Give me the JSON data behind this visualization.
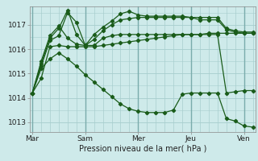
{
  "background_color": "#ceeaea",
  "grid_color": "#a8cece",
  "line_color": "#1a5c1a",
  "title": "Pression niveau de la mer( hPa )",
  "ylim": [
    1012.6,
    1017.75
  ],
  "yticks": [
    1013,
    1014,
    1015,
    1016,
    1017
  ],
  "xtick_labels": [
    "Mar",
    "Sam",
    "Mer",
    "Jeu",
    "Ven"
  ],
  "xtick_positions": [
    0,
    6,
    12,
    18,
    24
  ],
  "num_points": 26,
  "series": [
    [
      1014.2,
      1014.8,
      1016.1,
      1016.15,
      1016.1,
      1016.1,
      1016.1,
      1016.1,
      1016.15,
      1016.2,
      1016.25,
      1016.3,
      1016.35,
      1016.4,
      1016.45,
      1016.5,
      1016.55,
      1016.6,
      1016.6,
      1016.6,
      1016.65,
      1016.65,
      1016.65,
      1016.65,
      1016.65,
      1016.65
    ],
    [
      1014.2,
      1015.3,
      1016.35,
      1016.55,
      1017.5,
      1017.1,
      1016.15,
      1016.15,
      1016.45,
      1016.55,
      1016.6,
      1016.6,
      1016.6,
      1016.6,
      1016.6,
      1016.6,
      1016.6,
      1016.6,
      1016.6,
      1016.6,
      1016.6,
      1016.6,
      1014.2,
      1014.25,
      1014.3,
      1014.3
    ],
    [
      1014.2,
      1015.4,
      1016.45,
      1016.85,
      1017.6,
      1016.6,
      1016.15,
      1016.4,
      1016.75,
      1017.0,
      1017.2,
      1017.25,
      1017.3,
      1017.3,
      1017.3,
      1017.3,
      1017.3,
      1017.3,
      1017.3,
      1017.2,
      1017.2,
      1017.2,
      1016.8,
      1016.7,
      1016.65,
      1016.65
    ],
    [
      1014.2,
      1015.5,
      1016.55,
      1016.95,
      1016.45,
      1016.2,
      1016.15,
      1016.6,
      1016.9,
      1017.15,
      1017.45,
      1017.55,
      1017.4,
      1017.35,
      1017.35,
      1017.35,
      1017.35,
      1017.35,
      1017.3,
      1017.3,
      1017.3,
      1017.3,
      1016.85,
      1016.75,
      1016.7,
      1016.7
    ],
    [
      1014.2,
      1015.2,
      1015.6,
      1015.85,
      1015.6,
      1015.3,
      1014.95,
      1014.65,
      1014.35,
      1014.05,
      1013.75,
      1013.55,
      1013.45,
      1013.4,
      1013.4,
      1013.4,
      1013.5,
      1014.15,
      1014.2,
      1014.2,
      1014.2,
      1014.2,
      1013.15,
      1013.05,
      1012.85,
      1012.8
    ]
  ]
}
